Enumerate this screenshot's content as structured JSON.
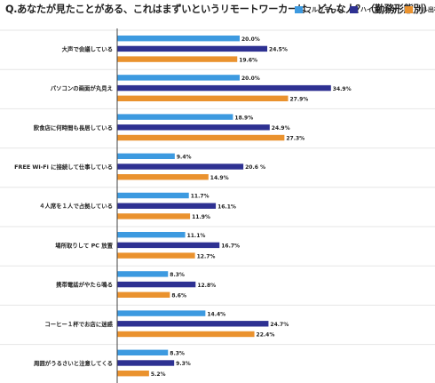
{
  "title": "Q.あなたが見たことがある、これはまずいというリモートワーカーは、どんな人？（勤務形態別）",
  "chart_data": {
    "type": "bar",
    "orientation": "horizontal",
    "title": "Q.あなたが見たことがある、これはまずいというリモートワーカーは、どんな人？（勤務形態別）",
    "xlim": [
      0,
      36
    ],
    "grid": false,
    "legend_position": "top-right",
    "categories": [
      "大声で会議している",
      "パソコンの画面が丸見え",
      "飲食店に何時間も長居している",
      "FREE Wi-Fi に接続して仕事している",
      "４人席を１人で占拠している",
      "場所取りして PC 放置",
      "携帯電話がやたら鳴る",
      "コーヒー１杯でお店に迷惑",
      "周囲がうるさいと注意してくる"
    ],
    "series": [
      {
        "name": "フルリモート",
        "color": "#3d9ae0",
        "values": [
          20.0,
          20.0,
          18.9,
          9.4,
          11.7,
          11.1,
          8.3,
          14.4,
          8.3
        ],
        "labels": [
          "20.0%",
          "20.0%",
          "18.9%",
          "9.4%",
          "11.7%",
          "11.1%",
          "8.3%",
          "14.4%",
          "8.3%"
        ]
      },
      {
        "name": "ハイブリット",
        "color": "#2e3192",
        "values": [
          24.5,
          34.9,
          24.9,
          20.6,
          16.1,
          16.7,
          12.8,
          24.7,
          9.3
        ],
        "labels": [
          "24.5%",
          "34.9%",
          "24.9%",
          "20.6 %",
          "16.1%",
          "16.7%",
          "12.8%",
          "24.7%",
          "9.3%"
        ]
      },
      {
        "name": "フル出社",
        "color": "#ea922e",
        "values": [
          19.6,
          27.9,
          27.3,
          14.9,
          11.9,
          12.7,
          8.6,
          22.4,
          5.2
        ],
        "labels": [
          "19.6%",
          "27.9%",
          "27.3%",
          "14.9%",
          "11.9%",
          "12.7%",
          "8.6%",
          "22.4%",
          "5.2%"
        ]
      }
    ]
  }
}
